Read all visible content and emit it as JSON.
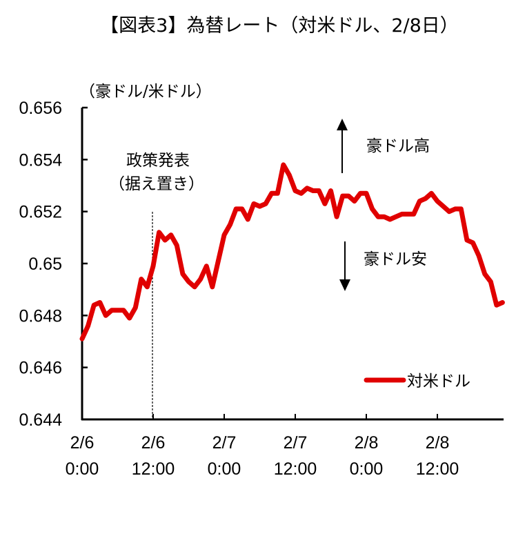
{
  "chart_data": {
    "type": "line",
    "title": "【図表3】為替レート（対米ドル、2/8日）",
    "ylabel": "（豪ドル/米ドル）",
    "xlabel": "",
    "ylim": [
      0.644,
      0.656
    ],
    "yticks": [
      "0.656",
      "0.654",
      "0.652",
      "0.65",
      "0.648",
      "0.646",
      "0.644"
    ],
    "ytick_values": [
      0.656,
      0.654,
      0.652,
      0.65,
      0.648,
      0.646,
      0.644
    ],
    "xticks": [
      {
        "line1": "2/6",
        "line2": "0:00"
      },
      {
        "line1": "2/6",
        "line2": "12:00"
      },
      {
        "line1": "2/7",
        "line2": "0:00"
      },
      {
        "line1": "2/7",
        "line2": "12:00"
      },
      {
        "line1": "2/8",
        "line2": "0:00"
      },
      {
        "line1": "2/8",
        "line2": "12:00"
      }
    ],
    "x_unit": "hours since 2/6 0:00",
    "x_range_hours": [
      0,
      71
    ],
    "grid": false,
    "legend_position": "lower right",
    "series": [
      {
        "name": "対米ドル",
        "color": "#e00000",
        "values": [
          0.6471,
          0.6476,
          0.6484,
          0.6485,
          0.648,
          0.6482,
          0.6482,
          0.6482,
          0.6479,
          0.6483,
          0.6494,
          0.6491,
          0.6499,
          0.6512,
          0.6509,
          0.6511,
          0.6507,
          0.6496,
          0.6493,
          0.6491,
          0.6494,
          0.6499,
          0.6491,
          0.6501,
          0.6511,
          0.6515,
          0.6521,
          0.6521,
          0.6517,
          0.6523,
          0.6522,
          0.6523,
          0.6527,
          0.6527,
          0.6538,
          0.6534,
          0.6528,
          0.6527,
          0.6529,
          0.6528,
          0.6528,
          0.6523,
          0.6528,
          0.6518,
          0.6526,
          0.6526,
          0.6524,
          0.6527,
          0.6527,
          0.6521,
          0.6518,
          0.6518,
          0.6517,
          0.6518,
          0.6519,
          0.6519,
          0.6519,
          0.6524,
          0.6525,
          0.6527,
          0.6524,
          0.6522,
          0.652,
          0.6521,
          0.6521,
          0.6509,
          0.6508,
          0.6503,
          0.6496,
          0.6493,
          0.6484,
          0.6485
        ]
      }
    ],
    "annotations": [
      {
        "text_line1": "政策発表",
        "text_line2": "（据え置き）",
        "at_hour": 12,
        "style": "dashed vertical line"
      },
      {
        "text": "豪ドル高",
        "arrow": "up"
      },
      {
        "text": "豪ドル安",
        "arrow": "down"
      }
    ]
  }
}
